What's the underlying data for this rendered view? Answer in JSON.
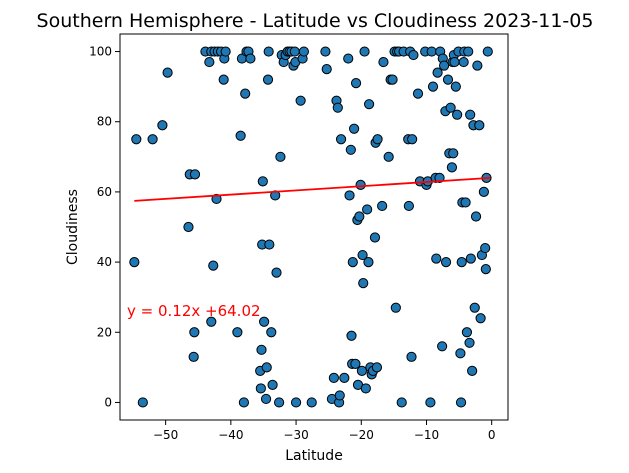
{
  "chart_data": {
    "type": "scatter",
    "title": "Southern Hemisphere - Latitude vs Cloudiness 2023-11-05",
    "xlabel": "Latitude",
    "ylabel": "Cloudiness",
    "xlim": [
      -57,
      2.5
    ],
    "ylim": [
      -5,
      105
    ],
    "xticks": [
      -50,
      -40,
      -30,
      -20,
      -10,
      0
    ],
    "yticks": [
      0,
      20,
      40,
      60,
      80,
      100
    ],
    "grid": false,
    "marker_color": "#1f77b4",
    "marker_edge": "#000000",
    "regression": {
      "slope": 0.12,
      "intercept": 64.02,
      "x_range": [
        -54.8,
        -0.2
      ],
      "color": "#ff0000",
      "equation_text": "y = 0.12x +64.02"
    },
    "points": [
      [
        -54.8,
        40
      ],
      [
        -54.5,
        75
      ],
      [
        -53.5,
        0
      ],
      [
        -52,
        75
      ],
      [
        -50.5,
        79
      ],
      [
        -49.7,
        94
      ],
      [
        -46.5,
        50
      ],
      [
        -46.3,
        65
      ],
      [
        -45.5,
        65
      ],
      [
        -45.7,
        13
      ],
      [
        -45.6,
        20
      ],
      [
        -43.9,
        100
      ],
      [
        -43.3,
        97
      ],
      [
        -43,
        100
      ],
      [
        -42.5,
        100
      ],
      [
        -42,
        100
      ],
      [
        -41.5,
        100
      ],
      [
        -41.1,
        92
      ],
      [
        -41,
        98
      ],
      [
        -40.8,
        100
      ],
      [
        -42.7,
        39
      ],
      [
        -42.2,
        58
      ],
      [
        -43,
        23
      ],
      [
        -39,
        20
      ],
      [
        -38.5,
        76
      ],
      [
        -38.3,
        98
      ],
      [
        -38,
        0
      ],
      [
        -37.8,
        88
      ],
      [
        -37.6,
        100
      ],
      [
        -37.3,
        100
      ],
      [
        -37,
        98
      ],
      [
        -35.5,
        9
      ],
      [
        -35.4,
        4
      ],
      [
        -35.3,
        15
      ],
      [
        -35.2,
        45
      ],
      [
        -35.1,
        63
      ],
      [
        -34.9,
        23
      ],
      [
        -34.6,
        1
      ],
      [
        -34.5,
        10
      ],
      [
        -34.3,
        92
      ],
      [
        -34.2,
        100
      ],
      [
        -34.1,
        45
      ],
      [
        -33.8,
        20
      ],
      [
        -33.6,
        5
      ],
      [
        -33.2,
        59
      ],
      [
        -33,
        37
      ],
      [
        -32.6,
        0
      ],
      [
        -32.4,
        70
      ],
      [
        -32.2,
        99
      ],
      [
        -31.9,
        97
      ],
      [
        -31.6,
        99
      ],
      [
        -31.3,
        100
      ],
      [
        -31,
        100
      ],
      [
        -30.7,
        100
      ],
      [
        -30.4,
        96
      ],
      [
        -30.2,
        100
      ],
      [
        -30.1,
        97
      ],
      [
        -30,
        0
      ],
      [
        -29.3,
        86
      ],
      [
        -29,
        98
      ],
      [
        -28.8,
        100
      ],
      [
        -27.6,
        0
      ],
      [
        -25.5,
        100
      ],
      [
        -25.3,
        95
      ],
      [
        -24.5,
        1
      ],
      [
        -24.2,
        7
      ],
      [
        -23.8,
        86
      ],
      [
        -23.6,
        84
      ],
      [
        -23.4,
        0
      ],
      [
        -23.3,
        2
      ],
      [
        -23.1,
        75
      ],
      [
        -22.6,
        7
      ],
      [
        -22,
        98
      ],
      [
        -21.8,
        59
      ],
      [
        -21.6,
        72
      ],
      [
        -21.5,
        19
      ],
      [
        -21.4,
        11
      ],
      [
        -21.3,
        40
      ],
      [
        -21.1,
        78
      ],
      [
        -20.9,
        11
      ],
      [
        -20.8,
        91
      ],
      [
        -20.6,
        52
      ],
      [
        -20.5,
        5
      ],
      [
        -20.3,
        53
      ],
      [
        -20.1,
        62
      ],
      [
        -19.9,
        9
      ],
      [
        -19.8,
        42
      ],
      [
        -19.7,
        34
      ],
      [
        -19.5,
        100
      ],
      [
        -19.3,
        4
      ],
      [
        -19.1,
        55
      ],
      [
        -18.9,
        40
      ],
      [
        -18.8,
        85
      ],
      [
        -18.6,
        10
      ],
      [
        -18.4,
        8
      ],
      [
        -18.2,
        9
      ],
      [
        -17.9,
        47
      ],
      [
        -17.8,
        74
      ],
      [
        -17.6,
        10
      ],
      [
        -17.5,
        75
      ],
      [
        -16.8,
        56
      ],
      [
        -16.6,
        97
      ],
      [
        -15.8,
        70
      ],
      [
        -15.5,
        92
      ],
      [
        -15.2,
        92
      ],
      [
        -14.9,
        100
      ],
      [
        -14.7,
        27
      ],
      [
        -14.5,
        100
      ],
      [
        -14.2,
        100
      ],
      [
        -13.8,
        0
      ],
      [
        -13.5,
        100
      ],
      [
        -12.8,
        75
      ],
      [
        -12.7,
        56
      ],
      [
        -12.5,
        100
      ],
      [
        -12.3,
        13
      ],
      [
        -12.2,
        75
      ],
      [
        -12,
        99
      ],
      [
        -11.3,
        88
      ],
      [
        -11,
        63
      ],
      [
        -10.2,
        100
      ],
      [
        -10,
        62
      ],
      [
        -9.8,
        63
      ],
      [
        -9.4,
        0
      ],
      [
        -9.2,
        100
      ],
      [
        -9,
        90
      ],
      [
        -8.6,
        64
      ],
      [
        -8.5,
        41
      ],
      [
        -8.3,
        94
      ],
      [
        -8,
        64
      ],
      [
        -7.9,
        100
      ],
      [
        -7.6,
        16
      ],
      [
        -7.5,
        98
      ],
      [
        -7.3,
        96
      ],
      [
        -7.1,
        83
      ],
      [
        -7,
        40
      ],
      [
        -6.7,
        92
      ],
      [
        -6.5,
        71
      ],
      [
        -6.3,
        84
      ],
      [
        -6.1,
        67
      ],
      [
        -6,
        97
      ],
      [
        -5.9,
        71
      ],
      [
        -5.8,
        99
      ],
      [
        -5.7,
        97
      ],
      [
        -5.5,
        90
      ],
      [
        -5.3,
        82
      ],
      [
        -5.1,
        100
      ],
      [
        -4.8,
        14
      ],
      [
        -4.7,
        0
      ],
      [
        -4.6,
        40
      ],
      [
        -4.5,
        57
      ],
      [
        -4.3,
        97
      ],
      [
        -4.2,
        100
      ],
      [
        -4,
        57
      ],
      [
        -3.8,
        20
      ],
      [
        -3.6,
        100
      ],
      [
        -3.4,
        17
      ],
      [
        -3.3,
        82
      ],
      [
        -3.2,
        41
      ],
      [
        -3,
        9
      ],
      [
        -2.8,
        79
      ],
      [
        -2.6,
        27
      ],
      [
        -2.4,
        53
      ],
      [
        -2.2,
        96
      ],
      [
        -1.9,
        79
      ],
      [
        -1.7,
        24
      ],
      [
        -1.5,
        42
      ],
      [
        -1.2,
        60
      ],
      [
        -1,
        44
      ],
      [
        -0.9,
        38
      ],
      [
        -0.8,
        64
      ],
      [
        -0.6,
        100
      ]
    ]
  }
}
